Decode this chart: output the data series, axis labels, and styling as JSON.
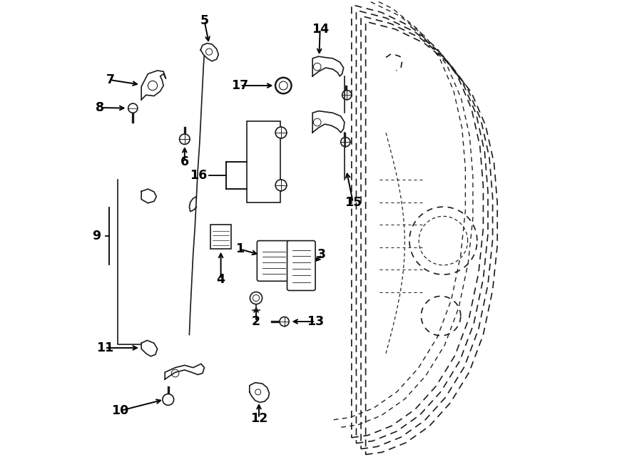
{
  "bg_color": "#ffffff",
  "line_color": "#1a1a1a",
  "label_color": "#000000"
}
